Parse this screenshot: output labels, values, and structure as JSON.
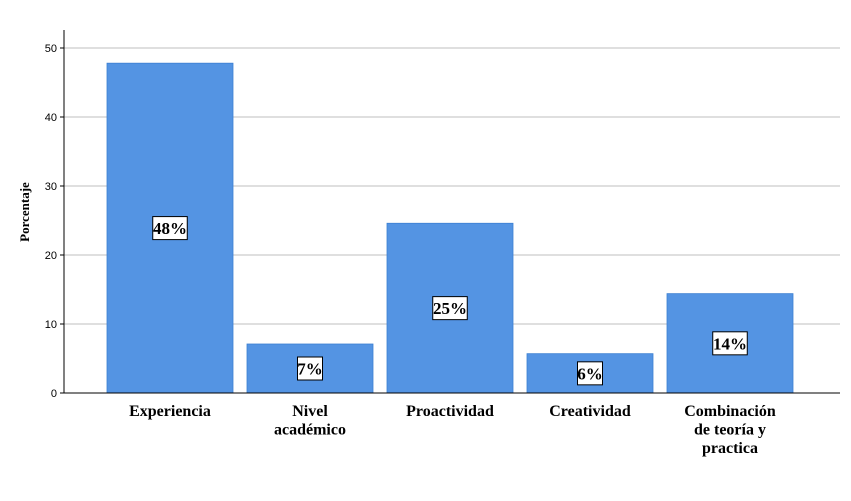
{
  "chart_data": {
    "type": "bar",
    "categories": [
      [
        "Experiencia"
      ],
      [
        "Nivel",
        "académico"
      ],
      [
        "Proactividad"
      ],
      [
        "Creatividad"
      ],
      [
        "Combinación",
        "de teoría y",
        "practica"
      ]
    ],
    "values": [
      47.8,
      7.1,
      24.6,
      5.7,
      14.4
    ],
    "data_labels": [
      "48%",
      "7%",
      "25%",
      "6%",
      "14%"
    ],
    "ylabel": "Porcentaje",
    "xlabel": "",
    "ylim": [
      0,
      50
    ],
    "yticks": [
      0,
      10,
      20,
      30,
      40,
      50
    ],
    "grid": true,
    "bar_color": "#5494e3",
    "grid_color": "#bfbfbf"
  }
}
